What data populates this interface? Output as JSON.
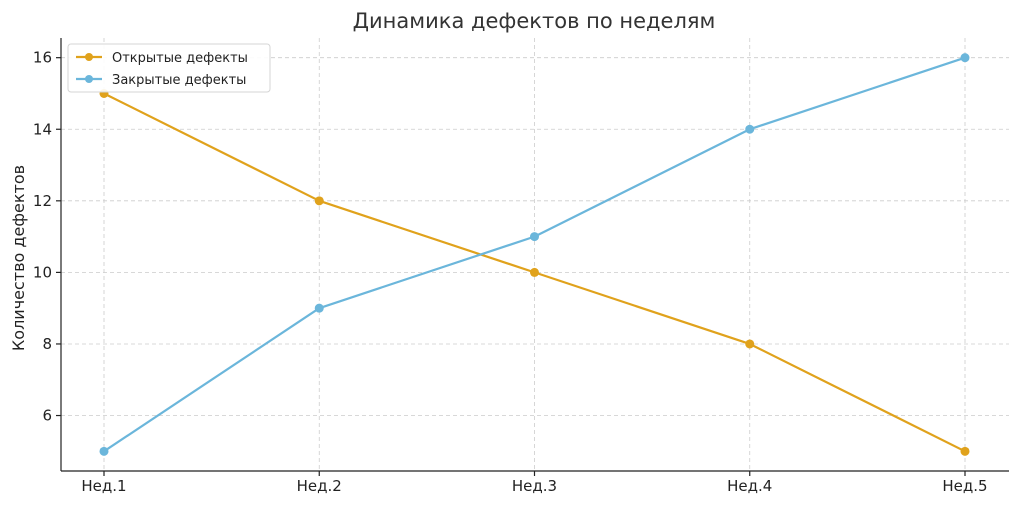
{
  "chart_data": {
    "type": "line",
    "title": "Динамика дефектов по неделям",
    "xlabel": "",
    "ylabel": "Количество дефектов",
    "categories": [
      "Нед.1",
      "Нед.2",
      "Нед.3",
      "Нед.4",
      "Нед.5"
    ],
    "series": [
      {
        "name": "Открытые дефекты",
        "values": [
          15,
          12,
          10,
          8,
          5
        ],
        "color": "#E0A21C"
      },
      {
        "name": "Закрытые дефекты",
        "values": [
          5,
          9,
          11,
          14,
          16
        ],
        "color": "#6BB6DB"
      }
    ],
    "ylim": [
      4.45,
      16.55
    ],
    "yticks": [
      6,
      8,
      10,
      12,
      14,
      16
    ],
    "grid": true,
    "legend": "top-left"
  }
}
